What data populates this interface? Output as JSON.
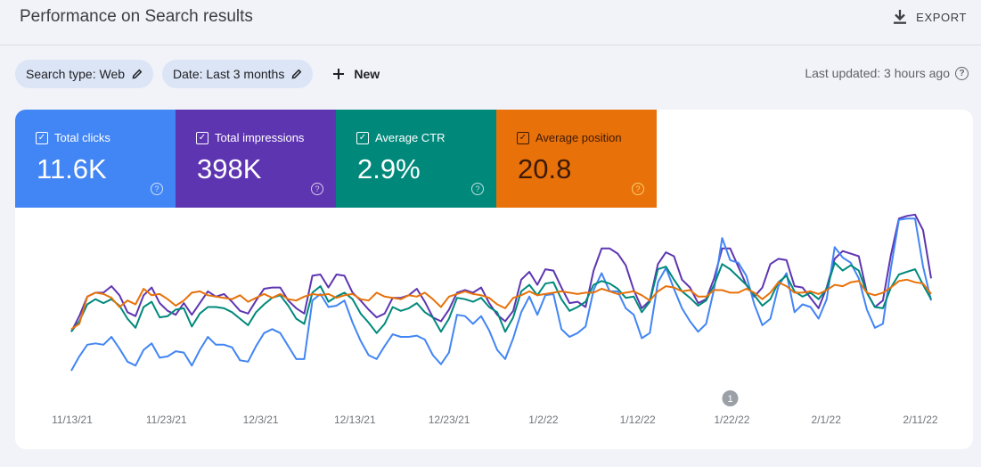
{
  "header": {
    "title": "Performance on Search results",
    "export_label": "EXPORT"
  },
  "filters": {
    "search_type": "Search type: Web",
    "date": "Date: Last 3 months",
    "new_label": "New"
  },
  "last_updated": "Last updated: 3 hours ago",
  "metrics": [
    {
      "label": "Total clicks",
      "value": "11.6K",
      "color": "#4285f4"
    },
    {
      "label": "Total impressions",
      "value": "398K",
      "color": "#5e35b1"
    },
    {
      "label": "Average CTR",
      "value": "2.9%",
      "color": "#00897b"
    },
    {
      "label": "Average position",
      "value": "20.8",
      "color": "#e8710a"
    }
  ],
  "icons": {
    "export": "download-icon",
    "edit": "pencil-icon",
    "new": "plus-icon",
    "help": "help-circle-icon",
    "checkbox": "checkbox-checked-icon"
  },
  "chart_data": {
    "type": "line",
    "x_ticks": [
      "11/13/21",
      "11/23/21",
      "12/3/21",
      "12/13/21",
      "12/23/21",
      "1/2/22",
      "1/12/22",
      "1/22/22",
      "2/1/22",
      "2/11/22"
    ],
    "annotation": {
      "label": "1",
      "x_index": 82
    },
    "series": [
      {
        "name": "Total impressions",
        "color": "#5e35b1",
        "values": [
          0.3,
          0.42,
          0.57,
          0.6,
          0.6,
          0.65,
          0.58,
          0.45,
          0.42,
          0.58,
          0.64,
          0.52,
          0.46,
          0.43,
          0.52,
          0.43,
          0.52,
          0.61,
          0.57,
          0.59,
          0.53,
          0.46,
          0.44,
          0.54,
          0.63,
          0.64,
          0.64,
          0.54,
          0.48,
          0.44,
          0.73,
          0.74,
          0.64,
          0.74,
          0.73,
          0.6,
          0.54,
          0.47,
          0.41,
          0.44,
          0.56,
          0.56,
          0.58,
          0.63,
          0.53,
          0.41,
          0.38,
          0.47,
          0.6,
          0.62,
          0.6,
          0.64,
          0.52,
          0.43,
          0.38,
          0.46,
          0.7,
          0.76,
          0.66,
          0.78,
          0.77,
          0.64,
          0.52,
          0.53,
          0.49,
          0.77,
          0.94,
          0.94,
          0.9,
          0.81,
          0.62,
          0.48,
          0.54,
          0.82,
          0.91,
          0.88,
          0.7,
          0.64,
          0.52,
          0.55,
          0.71,
          0.94,
          0.94,
          0.8,
          0.66,
          0.57,
          0.64,
          0.82,
          0.86,
          0.85,
          0.65,
          0.64,
          0.56,
          0.48,
          0.64,
          0.86,
          0.92,
          0.9,
          0.88,
          0.6,
          0.49,
          0.54,
          0.89,
          1.17,
          1.19,
          1.2,
          1.08,
          0.71
        ]
      },
      {
        "name": "Total clicks",
        "color": "#4285f4",
        "values": [
          0.0,
          0.11,
          0.2,
          0.21,
          0.2,
          0.26,
          0.17,
          0.07,
          0.04,
          0.16,
          0.21,
          0.1,
          0.11,
          0.15,
          0.14,
          0.04,
          0.16,
          0.26,
          0.2,
          0.2,
          0.18,
          0.08,
          0.07,
          0.19,
          0.29,
          0.32,
          0.29,
          0.19,
          0.09,
          0.09,
          0.54,
          0.59,
          0.49,
          0.5,
          0.54,
          0.37,
          0.23,
          0.12,
          0.09,
          0.19,
          0.28,
          0.26,
          0.26,
          0.27,
          0.24,
          0.12,
          0.05,
          0.14,
          0.43,
          0.42,
          0.36,
          0.42,
          0.31,
          0.16,
          0.09,
          0.25,
          0.45,
          0.57,
          0.43,
          0.58,
          0.59,
          0.32,
          0.26,
          0.29,
          0.34,
          0.62,
          0.75,
          0.61,
          0.61,
          0.48,
          0.43,
          0.25,
          0.29,
          0.68,
          0.79,
          0.63,
          0.48,
          0.38,
          0.3,
          0.36,
          0.63,
          1.02,
          0.85,
          0.83,
          0.73,
          0.51,
          0.35,
          0.4,
          0.65,
          0.75,
          0.45,
          0.51,
          0.49,
          0.4,
          0.55,
          0.95,
          0.87,
          0.83,
          0.71,
          0.47,
          0.33,
          0.36,
          0.79,
          1.16,
          1.17,
          1.17,
          0.8,
          0.54
        ]
      },
      {
        "name": "Average CTR",
        "color": "#00897b",
        "values": [
          0.3,
          0.38,
          0.51,
          0.55,
          0.52,
          0.55,
          0.5,
          0.4,
          0.33,
          0.49,
          0.53,
          0.41,
          0.42,
          0.47,
          0.48,
          0.34,
          0.44,
          0.49,
          0.49,
          0.48,
          0.45,
          0.4,
          0.35,
          0.45,
          0.51,
          0.56,
          0.58,
          0.5,
          0.4,
          0.36,
          0.6,
          0.65,
          0.53,
          0.57,
          0.6,
          0.55,
          0.44,
          0.37,
          0.29,
          0.36,
          0.49,
          0.46,
          0.48,
          0.52,
          0.45,
          0.41,
          0.3,
          0.4,
          0.56,
          0.55,
          0.53,
          0.56,
          0.49,
          0.45,
          0.3,
          0.41,
          0.61,
          0.66,
          0.58,
          0.67,
          0.68,
          0.55,
          0.46,
          0.49,
          0.53,
          0.66,
          0.69,
          0.67,
          0.63,
          0.56,
          0.57,
          0.45,
          0.53,
          0.78,
          0.8,
          0.7,
          0.61,
          0.56,
          0.5,
          0.54,
          0.66,
          0.82,
          0.78,
          0.72,
          0.66,
          0.58,
          0.5,
          0.55,
          0.68,
          0.73,
          0.61,
          0.57,
          0.6,
          0.55,
          0.63,
          0.83,
          0.77,
          0.81,
          0.77,
          0.6,
          0.49,
          0.48,
          0.64,
          0.74,
          0.76,
          0.78,
          0.66,
          0.55
        ]
      },
      {
        "name": "Average position",
        "color": "#e8710a",
        "values": [
          0.32,
          0.36,
          0.57,
          0.6,
          0.59,
          0.56,
          0.49,
          0.54,
          0.51,
          0.63,
          0.58,
          0.59,
          0.55,
          0.5,
          0.54,
          0.6,
          0.61,
          0.58,
          0.57,
          0.56,
          0.55,
          0.58,
          0.53,
          0.56,
          0.59,
          0.56,
          0.59,
          0.55,
          0.54,
          0.57,
          0.59,
          0.58,
          0.59,
          0.56,
          0.58,
          0.59,
          0.55,
          0.54,
          0.6,
          0.57,
          0.56,
          0.55,
          0.58,
          0.57,
          0.6,
          0.55,
          0.49,
          0.57,
          0.59,
          0.61,
          0.59,
          0.58,
          0.56,
          0.51,
          0.48,
          0.56,
          0.58,
          0.61,
          0.58,
          0.59,
          0.6,
          0.61,
          0.6,
          0.59,
          0.6,
          0.6,
          0.63,
          0.61,
          0.59,
          0.6,
          0.61,
          0.58,
          0.54,
          0.61,
          0.65,
          0.64,
          0.61,
          0.62,
          0.57,
          0.57,
          0.62,
          0.62,
          0.6,
          0.6,
          0.63,
          0.6,
          0.55,
          0.6,
          0.68,
          0.65,
          0.6,
          0.6,
          0.61,
          0.59,
          0.62,
          0.66,
          0.65,
          0.68,
          0.69,
          0.6,
          0.58,
          0.6,
          0.64,
          0.69,
          0.7,
          0.68,
          0.67,
          0.59
        ]
      }
    ]
  }
}
